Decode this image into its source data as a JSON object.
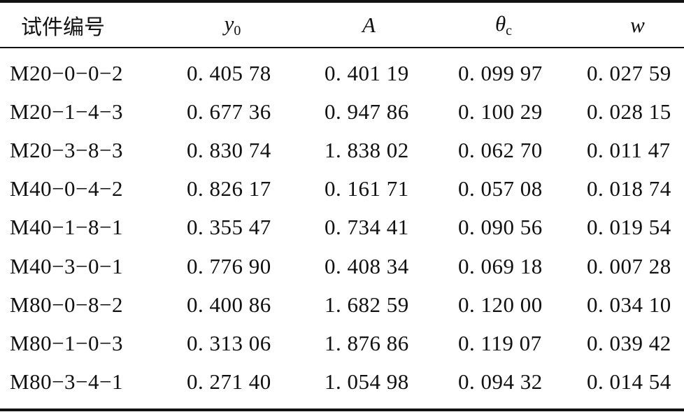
{
  "headers": {
    "col1": "试件编号",
    "col2_var": "y",
    "col2_sub": "0",
    "col3_var": "A",
    "col4_var": "θ",
    "col4_sub": "c",
    "col5_var": "w"
  },
  "rows": [
    [
      "M20−0−0−2",
      "0. 405 78",
      "0. 401 19",
      "0. 099 97",
      "0. 027 59"
    ],
    [
      "M20−1−4−3",
      "0. 677 36",
      "0. 947 86",
      "0. 100 29",
      "0. 028 15"
    ],
    [
      "M20−3−8−3",
      "0. 830 74",
      "1. 838 02",
      "0. 062 70",
      "0. 011 47"
    ],
    [
      "M40−0−4−2",
      "0. 826 17",
      "0. 161 71",
      "0. 057 08",
      "0. 018 74"
    ],
    [
      "M40−1−8−1",
      "0. 355 47",
      "0. 734 41",
      "0. 090 56",
      "0. 019 54"
    ],
    [
      "M40−3−0−1",
      "0. 776 90",
      "0. 408 34",
      "0. 069 18",
      "0. 007 28"
    ],
    [
      "M80−0−8−2",
      "0. 400 86",
      "1. 682 59",
      "0. 120 00",
      "0. 034 10"
    ],
    [
      "M80−1−0−3",
      "0. 313 06",
      "1. 876 86",
      "0. 119 07",
      "0. 039 42"
    ],
    [
      "M80−3−4−1",
      "0. 271 40",
      "1. 054 98",
      "0. 094 32",
      "0. 014 54"
    ]
  ]
}
